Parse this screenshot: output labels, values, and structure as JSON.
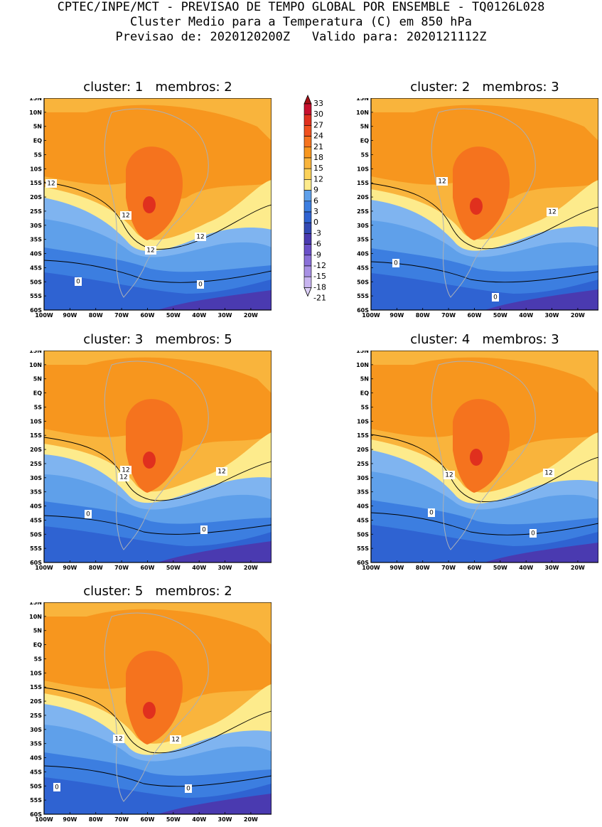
{
  "header": {
    "line1": "CPTEC/INPE/MCT - PREVISAO DE TEMPO GLOBAL POR ENSEMBLE - TQ0126L028",
    "line2": "Cluster Medio para a Temperatura (C) em 850 hPa",
    "line3": "Previsao de: 2020120200Z   Valido para: 2020121112Z"
  },
  "axes": {
    "lat_labels": [
      "15N",
      "10N",
      "5N",
      "EQ",
      "5S",
      "10S",
      "15S",
      "20S",
      "25S",
      "30S",
      "35S",
      "40S",
      "45S",
      "50S",
      "55S",
      "60S"
    ],
    "lon_labels": [
      "100W",
      "90W",
      "80W",
      "70W",
      "60W",
      "50W",
      "40W",
      "30W",
      "20W"
    ]
  },
  "colorbar": {
    "labels": [
      "33",
      "30",
      "27",
      "24",
      "21",
      "18",
      "15",
      "12",
      "9",
      "6",
      "3",
      "0",
      "-3",
      "-6",
      "-9",
      "-12",
      "-15",
      "-18",
      "-21"
    ],
    "colors": [
      "#a50f15",
      "#c8102e",
      "#e0301e",
      "#f0501e",
      "#f5731e",
      "#f7961e",
      "#f9b43c",
      "#fcd25a",
      "#fdeb8c",
      "#5fa0ea",
      "#3c7ee0",
      "#2f63d2",
      "#3249b4",
      "#4a3ab0",
      "#6a50c8",
      "#8a70d8",
      "#a890e4",
      "#c8b4f0",
      "#ddd0f8"
    ]
  },
  "panels": [
    {
      "title": "cluster: 1   membros: 2",
      "contour_labels": [
        "12",
        "12",
        "12",
        "12",
        "0",
        "0"
      ]
    },
    {
      "title": "cluster: 2   membros: 3",
      "contour_labels": [
        "12",
        "12",
        "0",
        "0"
      ]
    },
    {
      "title": "cluster: 3   membros: 5",
      "contour_labels": [
        "12",
        "12",
        "12",
        "0",
        "0"
      ]
    },
    {
      "title": "cluster: 4   membros: 3",
      "contour_labels": [
        "12",
        "12",
        "0",
        "0"
      ]
    },
    {
      "title": "cluster: 5   membros: 2",
      "contour_labels": [
        "12",
        "12",
        "0",
        "0"
      ]
    }
  ]
}
